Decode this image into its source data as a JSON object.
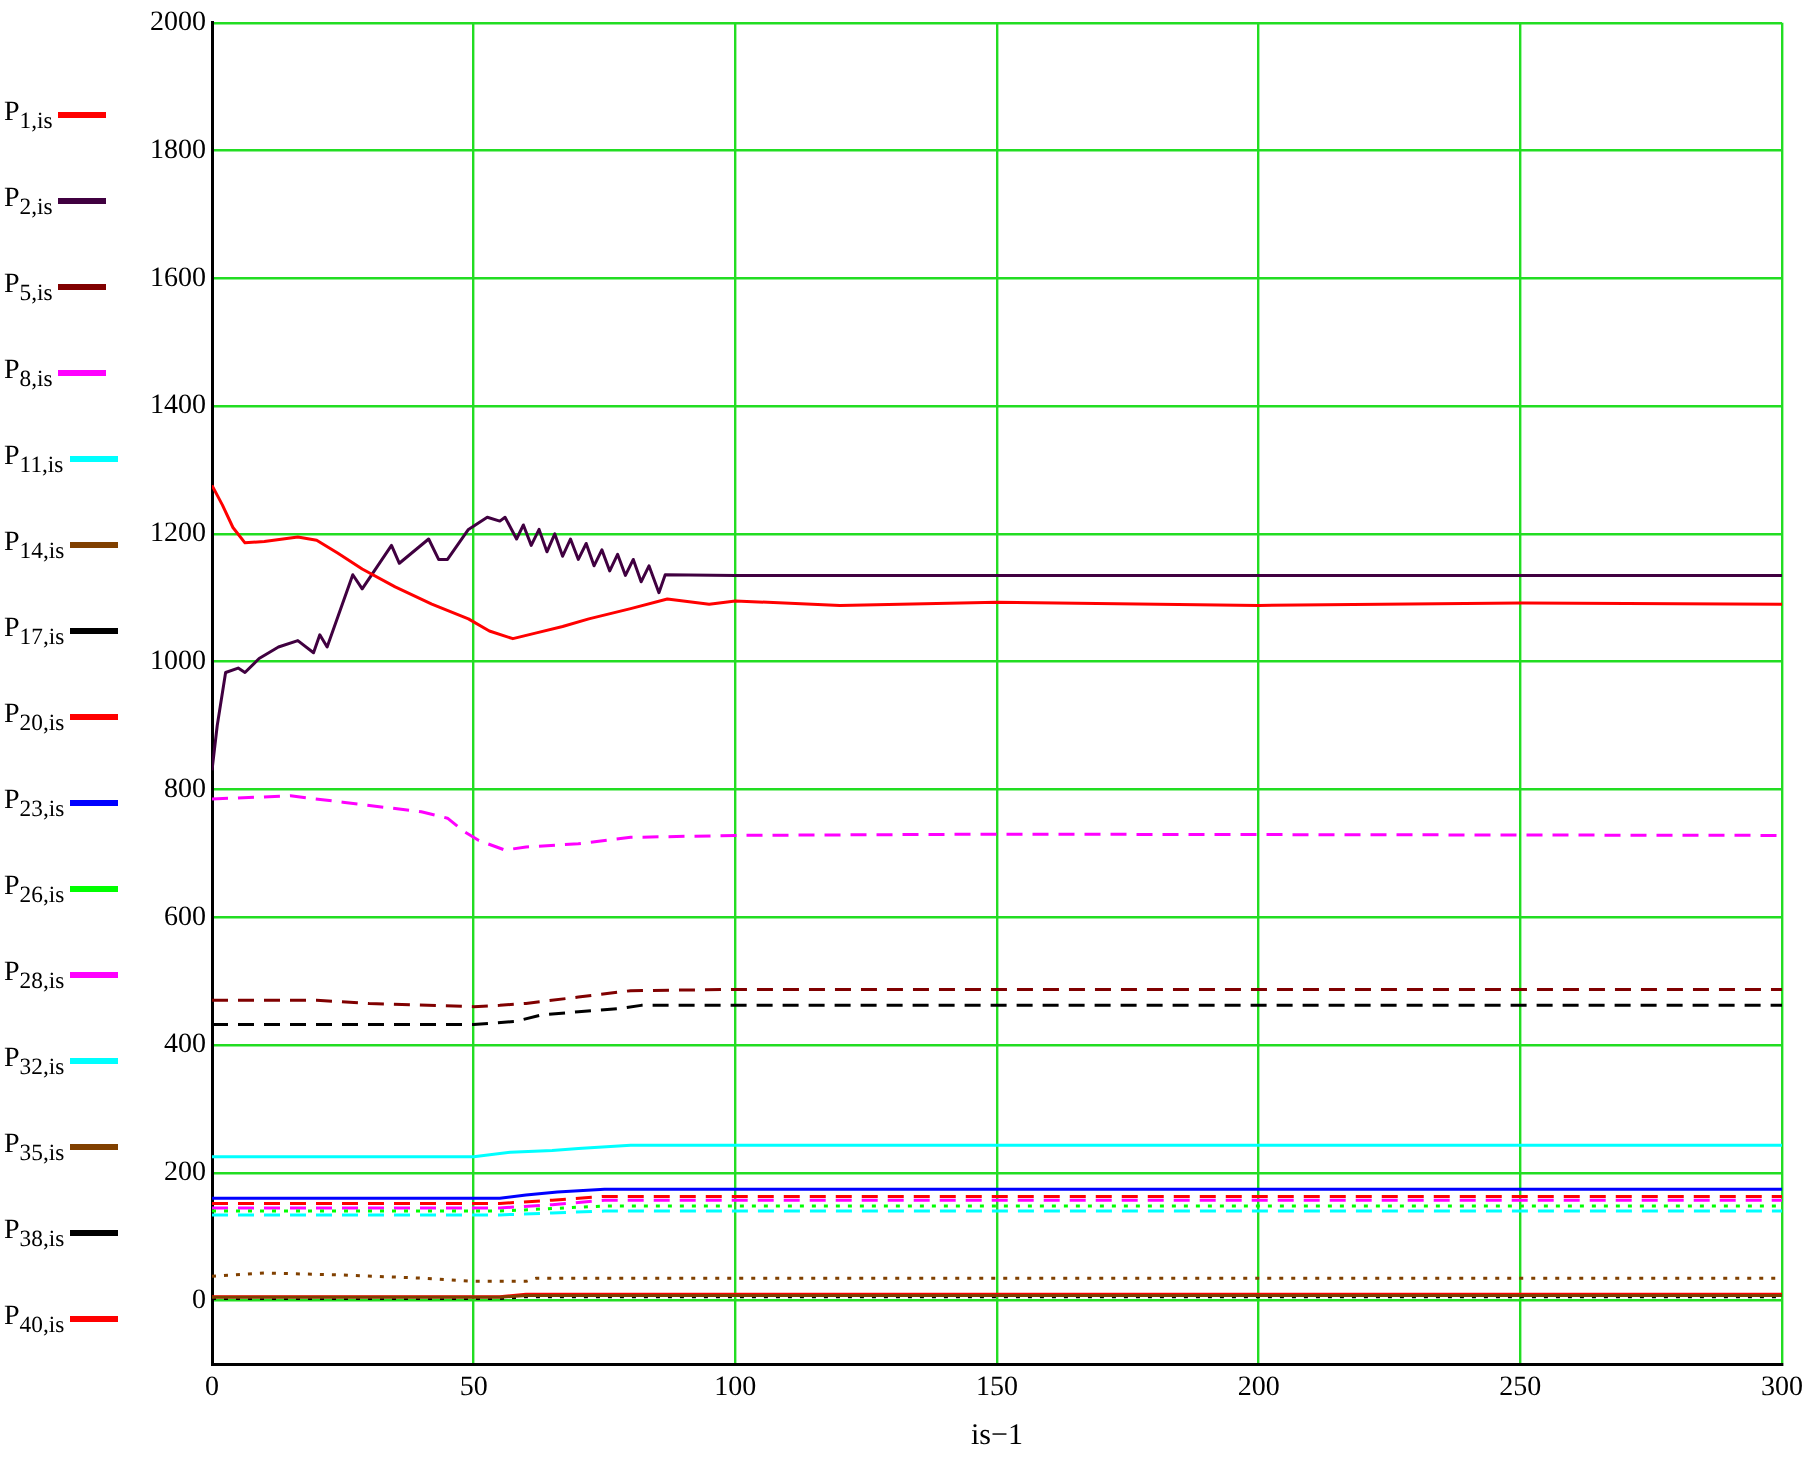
{
  "chart_data": {
    "type": "line",
    "xlabel": "is−1",
    "xlim": [
      0,
      300
    ],
    "xticks": [
      0,
      50,
      100,
      150,
      200,
      250,
      300
    ],
    "ylim": [
      -100,
      2000
    ],
    "yticks": [
      0,
      200,
      400,
      600,
      800,
      1000,
      1200,
      1400,
      1600,
      1800,
      2000
    ],
    "grid": true,
    "legend": "left",
    "series": [
      {
        "name": "P$_{1,is}$",
        "color": "#ff0000",
        "line_style": "solid",
        "x": [
          0,
          2,
          4,
          6.3,
          10,
          16.4,
          20,
          24,
          28.7,
          35,
          42,
          49,
          53,
          57.5,
          62,
          67,
          72,
          80,
          87,
          95,
          100,
          120,
          150,
          200,
          250,
          300
        ],
        "values": [
          1276,
          1245,
          1210,
          1186,
          1188,
          1195,
          1190,
          1170,
          1145,
          1117,
          1090,
          1067,
          1048,
          1036,
          1045,
          1055,
          1067,
          1083,
          1098,
          1090,
          1095,
          1088,
          1093,
          1088,
          1092,
          1090
        ]
      },
      {
        "name": "P$_{2,is}$",
        "color": "#400040",
        "line_style": "solid",
        "x": [
          0,
          1,
          2.6,
          5,
          6.3,
          9,
          12.7,
          16.4,
          19.4,
          20.6,
          22,
          26.9,
          28.7,
          34.3,
          35.8,
          41.4,
          43.3,
          45,
          49,
          52.6,
          55,
          56,
          58.2,
          59.5,
          61,
          62.5,
          64,
          65.5,
          67,
          68.5,
          70,
          71.5,
          73,
          74.5,
          76,
          77.5,
          79,
          80.5,
          82,
          83.5,
          85.4,
          86.6,
          100,
          150,
          200,
          250,
          300
        ],
        "values": [
          830,
          900,
          983,
          990,
          983,
          1005,
          1023,
          1033,
          1014,
          1042,
          1023,
          1136,
          1114,
          1182,
          1154,
          1192,
          1160,
          1160,
          1207,
          1226,
          1220,
          1226,
          1192,
          1214,
          1182,
          1207,
          1172,
          1200,
          1165,
          1192,
          1160,
          1185,
          1150,
          1175,
          1142,
          1168,
          1135,
          1160,
          1125,
          1150,
          1108,
          1136,
          1135,
          1135,
          1135,
          1135,
          1135
        ]
      },
      {
        "name": "P$_{5,is}$",
        "color": "#800000",
        "line_style": "dashed",
        "x": [
          0,
          20,
          30,
          50,
          55,
          60,
          70,
          80,
          100,
          300
        ],
        "values": [
          470,
          470,
          465,
          460,
          462,
          465,
          475,
          485,
          487,
          487
        ]
      },
      {
        "name": "P$_{8,is}$",
        "color": "#ff00ff",
        "line_style": "dashed",
        "x": [
          0,
          15,
          25,
          35,
          40,
          45,
          48,
          51,
          56,
          60,
          70,
          80,
          100,
          150,
          300
        ],
        "values": [
          785,
          790,
          780,
          770,
          765,
          755,
          735,
          720,
          705,
          710,
          715,
          725,
          728,
          730,
          728
        ]
      },
      {
        "name": "P$_{11,is}$",
        "color": "#00ffff",
        "line_style": "solid",
        "x": [
          0,
          50,
          57,
          65,
          70,
          80,
          300
        ],
        "values": [
          225,
          225,
          232,
          235,
          238,
          243,
          243
        ]
      },
      {
        "name": "P$_{14,is}$",
        "color": "#804000",
        "line_style": "dotted",
        "x": [
          0,
          10,
          25,
          40,
          50,
          60,
          62,
          300
        ],
        "values": [
          38,
          43,
          40,
          35,
          30,
          30,
          35,
          35
        ]
      },
      {
        "name": "P$_{17,is}$",
        "color": "#000000",
        "line_style": "dashed",
        "x": [
          0,
          50,
          58,
          63,
          70,
          78,
          82,
          300
        ],
        "values": [
          432,
          432,
          437,
          447,
          452,
          457,
          462,
          462
        ]
      },
      {
        "name": "P$_{20,is}$",
        "color": "#ff0000",
        "line_style": "dashed",
        "x": [
          0,
          55,
          65,
          75,
          300
        ],
        "values": [
          152,
          152,
          157,
          163,
          163
        ]
      },
      {
        "name": "P$_{23,is}$",
        "color": "#0000ff",
        "line_style": "solid",
        "x": [
          0,
          55,
          60,
          66,
          75,
          300
        ],
        "values": [
          160,
          160,
          165,
          170,
          174,
          174
        ]
      },
      {
        "name": "P$_{26,is}$",
        "color": "#00ff00",
        "line_style": "dotted",
        "x": [
          0,
          55,
          65,
          75,
          300
        ],
        "values": [
          140,
          140,
          144,
          148,
          148
        ]
      },
      {
        "name": "P$_{28,is}$",
        "color": "#ff00ff",
        "line_style": "dashed",
        "x": [
          0,
          55,
          65,
          75,
          300
        ],
        "values": [
          145,
          145,
          150,
          157,
          157
        ]
      },
      {
        "name": "P$_{32,is}$",
        "color": "#00ffff",
        "line_style": "dashed",
        "x": [
          0,
          55,
          65,
          75,
          300
        ],
        "values": [
          134,
          134,
          137,
          140,
          140
        ]
      },
      {
        "name": "P$_{35,is}$",
        "color": "#804000",
        "line_style": "solid",
        "x": [
          0,
          55,
          60,
          300
        ],
        "values": [
          5,
          5,
          8,
          8
        ]
      },
      {
        "name": "P$_{38,is}$",
        "color": "#000000",
        "line_style": "dotted",
        "x": [
          0,
          55,
          60,
          300
        ],
        "values": [
          3,
          3,
          6,
          6
        ]
      },
      {
        "name": "P$_{40,is}$",
        "color": "#ff0000",
        "line_style": "solid",
        "x": [
          0,
          55,
          60,
          300
        ],
        "values": [
          6,
          6,
          10,
          10
        ]
      }
    ]
  }
}
